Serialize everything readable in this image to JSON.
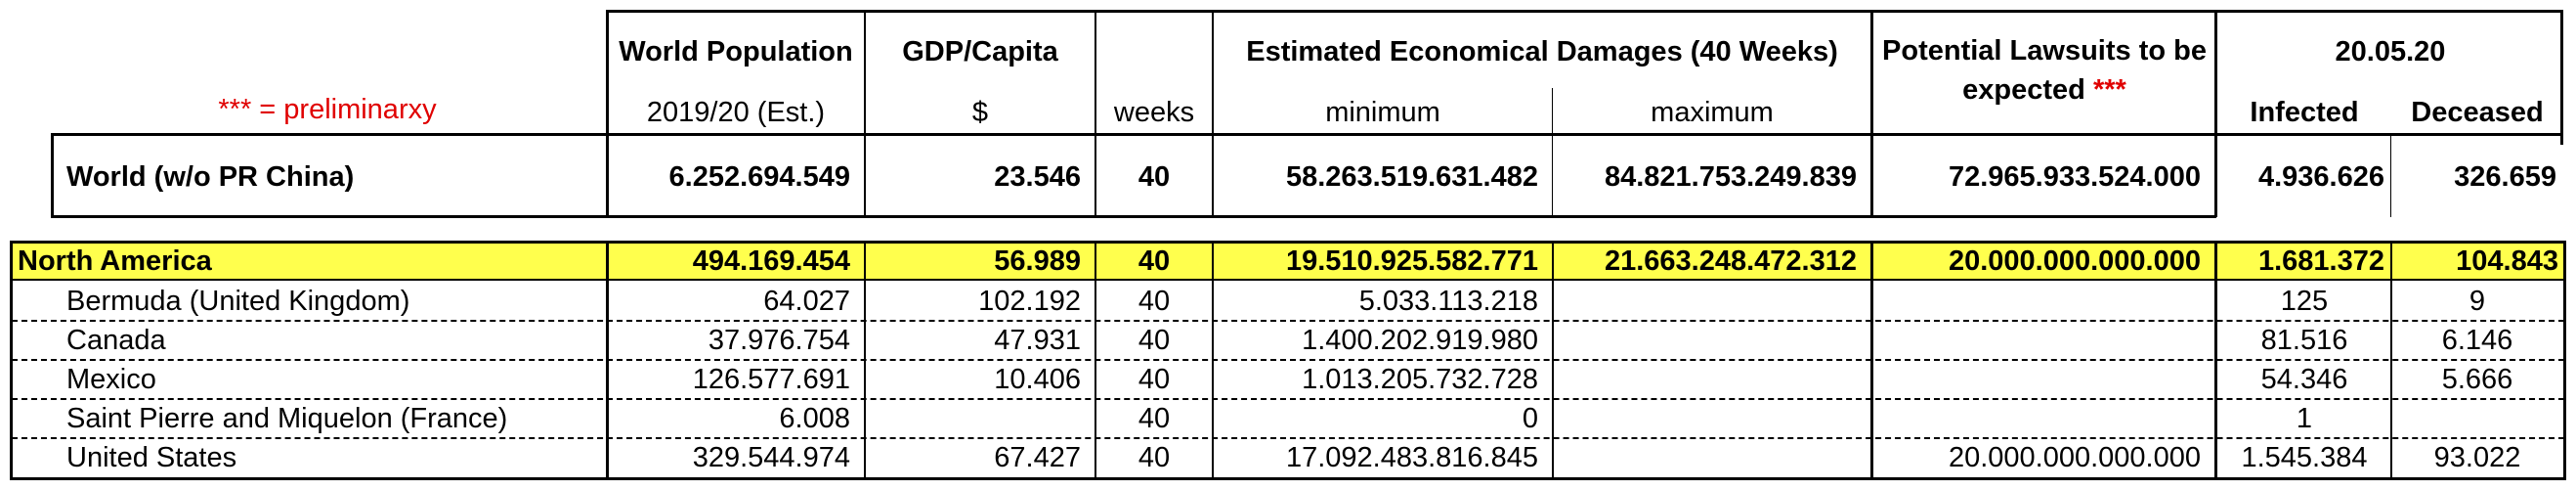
{
  "legend": {
    "text": "*** = preliminarxy"
  },
  "headers": {
    "population": {
      "title": "World Population",
      "sub": "2019/20 (Est.)"
    },
    "gdp": {
      "title": "GDP/Capita",
      "sub": "$"
    },
    "weeks": {
      "sub": "weeks"
    },
    "damages": {
      "title": "Estimated Economical Damages (40 Weeks)",
      "min": "minimum",
      "max": "maximum"
    },
    "lawsuits": {
      "title": "Potential Lawsuits to be expected",
      "marker": "***"
    },
    "covid": {
      "date": "20.05.20",
      "infected": "Infected",
      "deceased": "Deceased"
    }
  },
  "world": {
    "name": "World (w/o PR China)",
    "population": "6.252.694.549",
    "gdp": "23.546",
    "weeks": "40",
    "min": "58.263.519.631.482",
    "max": "84.821.753.249.839",
    "lawsuits": "72.965.933.524.000",
    "infected": "4.936.626",
    "deceased": "326.659"
  },
  "region": {
    "name": "North America",
    "population": "494.169.454",
    "gdp": "56.989",
    "weeks": "40",
    "min": "19.510.925.582.771",
    "max": "21.663.248.472.312",
    "lawsuits": "20.000.000.000.000",
    "infected": "1.681.372",
    "deceased": "104.843"
  },
  "rows": [
    {
      "name": "Bermuda (United Kingdom)",
      "population": "64.027",
      "gdp": "102.192",
      "weeks": "40",
      "min": "5.033.113.218",
      "max": "",
      "lawsuits": "",
      "infected": "125",
      "deceased": "9"
    },
    {
      "name": "Canada",
      "population": "37.976.754",
      "gdp": "47.931",
      "weeks": "40",
      "min": "1.400.202.919.980",
      "max": "",
      "lawsuits": "",
      "infected": "81.516",
      "deceased": "6.146"
    },
    {
      "name": "Mexico",
      "population": "126.577.691",
      "gdp": "10.406",
      "weeks": "40",
      "min": "1.013.205.732.728",
      "max": "",
      "lawsuits": "",
      "infected": "54.346",
      "deceased": "5.666"
    },
    {
      "name": "Saint Pierre and Miquelon (France)",
      "population": "6.008",
      "gdp": "",
      "weeks": "40",
      "min": "0",
      "max": "",
      "lawsuits": "",
      "infected": "1",
      "deceased": ""
    },
    {
      "name": "United States",
      "population": "329.544.974",
      "gdp": "67.427",
      "weeks": "40",
      "min": "17.092.483.816.845",
      "max": "",
      "lawsuits": "20.000.000.000.000",
      "infected": "1.545.384",
      "deceased": "93.022"
    }
  ],
  "colors": {
    "highlight": "#ffff4d",
    "marker": "#e00000"
  }
}
